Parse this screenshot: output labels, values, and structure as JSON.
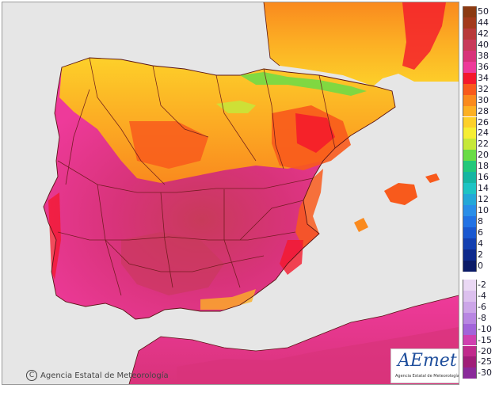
{
  "map": {
    "sea_color": "#e6e6e6",
    "border_color": "#6b1a1a"
  },
  "legend": {
    "positive": [
      {
        "label": "50",
        "color": "#8b3a12"
      },
      {
        "label": "44",
        "color": "#a33a1c"
      },
      {
        "label": "42",
        "color": "#b83a3a"
      },
      {
        "label": "40",
        "color": "#c83a5a"
      },
      {
        "label": "38",
        "color": "#d8337a"
      },
      {
        "label": "36",
        "color": "#ee3a9a"
      },
      {
        "label": "34",
        "color": "#f4182c"
      },
      {
        "label": "32",
        "color": "#f85a1c"
      },
      {
        "label": "30",
        "color": "#fa8a1e"
      },
      {
        "label": "28",
        "color": "#fcb024"
      },
      {
        "label": "26",
        "color": "#fdd02a"
      },
      {
        "label": "24",
        "color": "#f6ee34"
      },
      {
        "label": "22",
        "color": "#c6e83a"
      },
      {
        "label": "20",
        "color": "#6adc46"
      },
      {
        "label": "18",
        "color": "#22c87a"
      },
      {
        "label": "16",
        "color": "#16b6a2"
      },
      {
        "label": "14",
        "color": "#1ec4c4"
      },
      {
        "label": "12",
        "color": "#24a8d8"
      },
      {
        "label": "10",
        "color": "#2a8ee8"
      },
      {
        "label": "8",
        "color": "#2272e4"
      },
      {
        "label": "6",
        "color": "#1a58d0"
      },
      {
        "label": "4",
        "color": "#1440b0"
      },
      {
        "label": "2",
        "color": "#0e2a8c"
      },
      {
        "label": "0",
        "color": "#0a1a66"
      }
    ],
    "negative": [
      {
        "label": "-2",
        "color": "#ead8f4"
      },
      {
        "label": "-4",
        "color": "#dcc0ee"
      },
      {
        "label": "-6",
        "color": "#cca6e8"
      },
      {
        "label": "-8",
        "color": "#b886e2"
      },
      {
        "label": "-10",
        "color": "#a264da"
      },
      {
        "label": "-15",
        "color": "#d040b0"
      },
      {
        "label": "-20",
        "color": "#c02a8c"
      },
      {
        "label": "-25",
        "color": "#a01e78"
      },
      {
        "label": "-30",
        "color": "#8a2a9a"
      }
    ]
  },
  "footer": {
    "copyright_symbol": "C",
    "copyright_text": "Agencia Estatal de Meteorología"
  },
  "logo": {
    "wordmark": "AEmet",
    "subtitle": "Agencia Estatal de Meteorología"
  }
}
